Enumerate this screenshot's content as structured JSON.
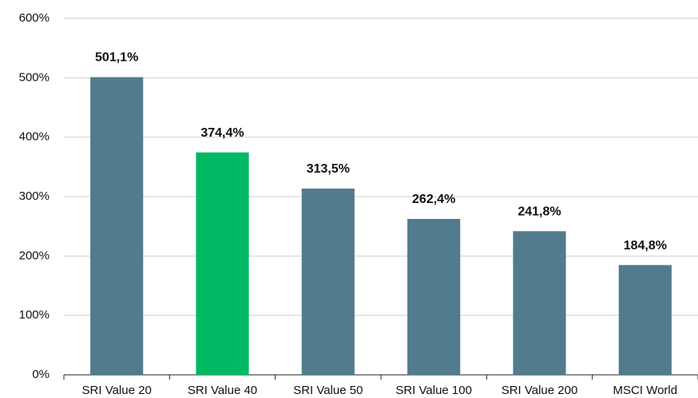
{
  "chart_data": {
    "type": "bar",
    "categories": [
      "SRI Value 20",
      "SRI Value 40",
      "SRI Value 50",
      "SRI Value 100",
      "SRI Value 200",
      "MSCI World"
    ],
    "values": [
      501.1,
      374.4,
      313.5,
      262.4,
      241.8,
      184.8
    ],
    "value_labels": [
      "501,1%",
      "374,4%",
      "313,5%",
      "262,4%",
      "241,8%",
      "184,8%"
    ],
    "colors": [
      "#527b8d",
      "#00b962",
      "#527b8d",
      "#527b8d",
      "#527b8d",
      "#527b8d"
    ],
    "ylim": [
      0,
      600
    ],
    "yticks": [
      {
        "value": 0,
        "label": "0%"
      },
      {
        "value": 100,
        "label": "100%"
      },
      {
        "value": 200,
        "label": "200%"
      },
      {
        "value": 300,
        "label": "300%"
      },
      {
        "value": 400,
        "label": "400%"
      },
      {
        "value": 500,
        "label": "500%"
      },
      {
        "value": 600,
        "label": "600%"
      }
    ],
    "grid": true
  }
}
